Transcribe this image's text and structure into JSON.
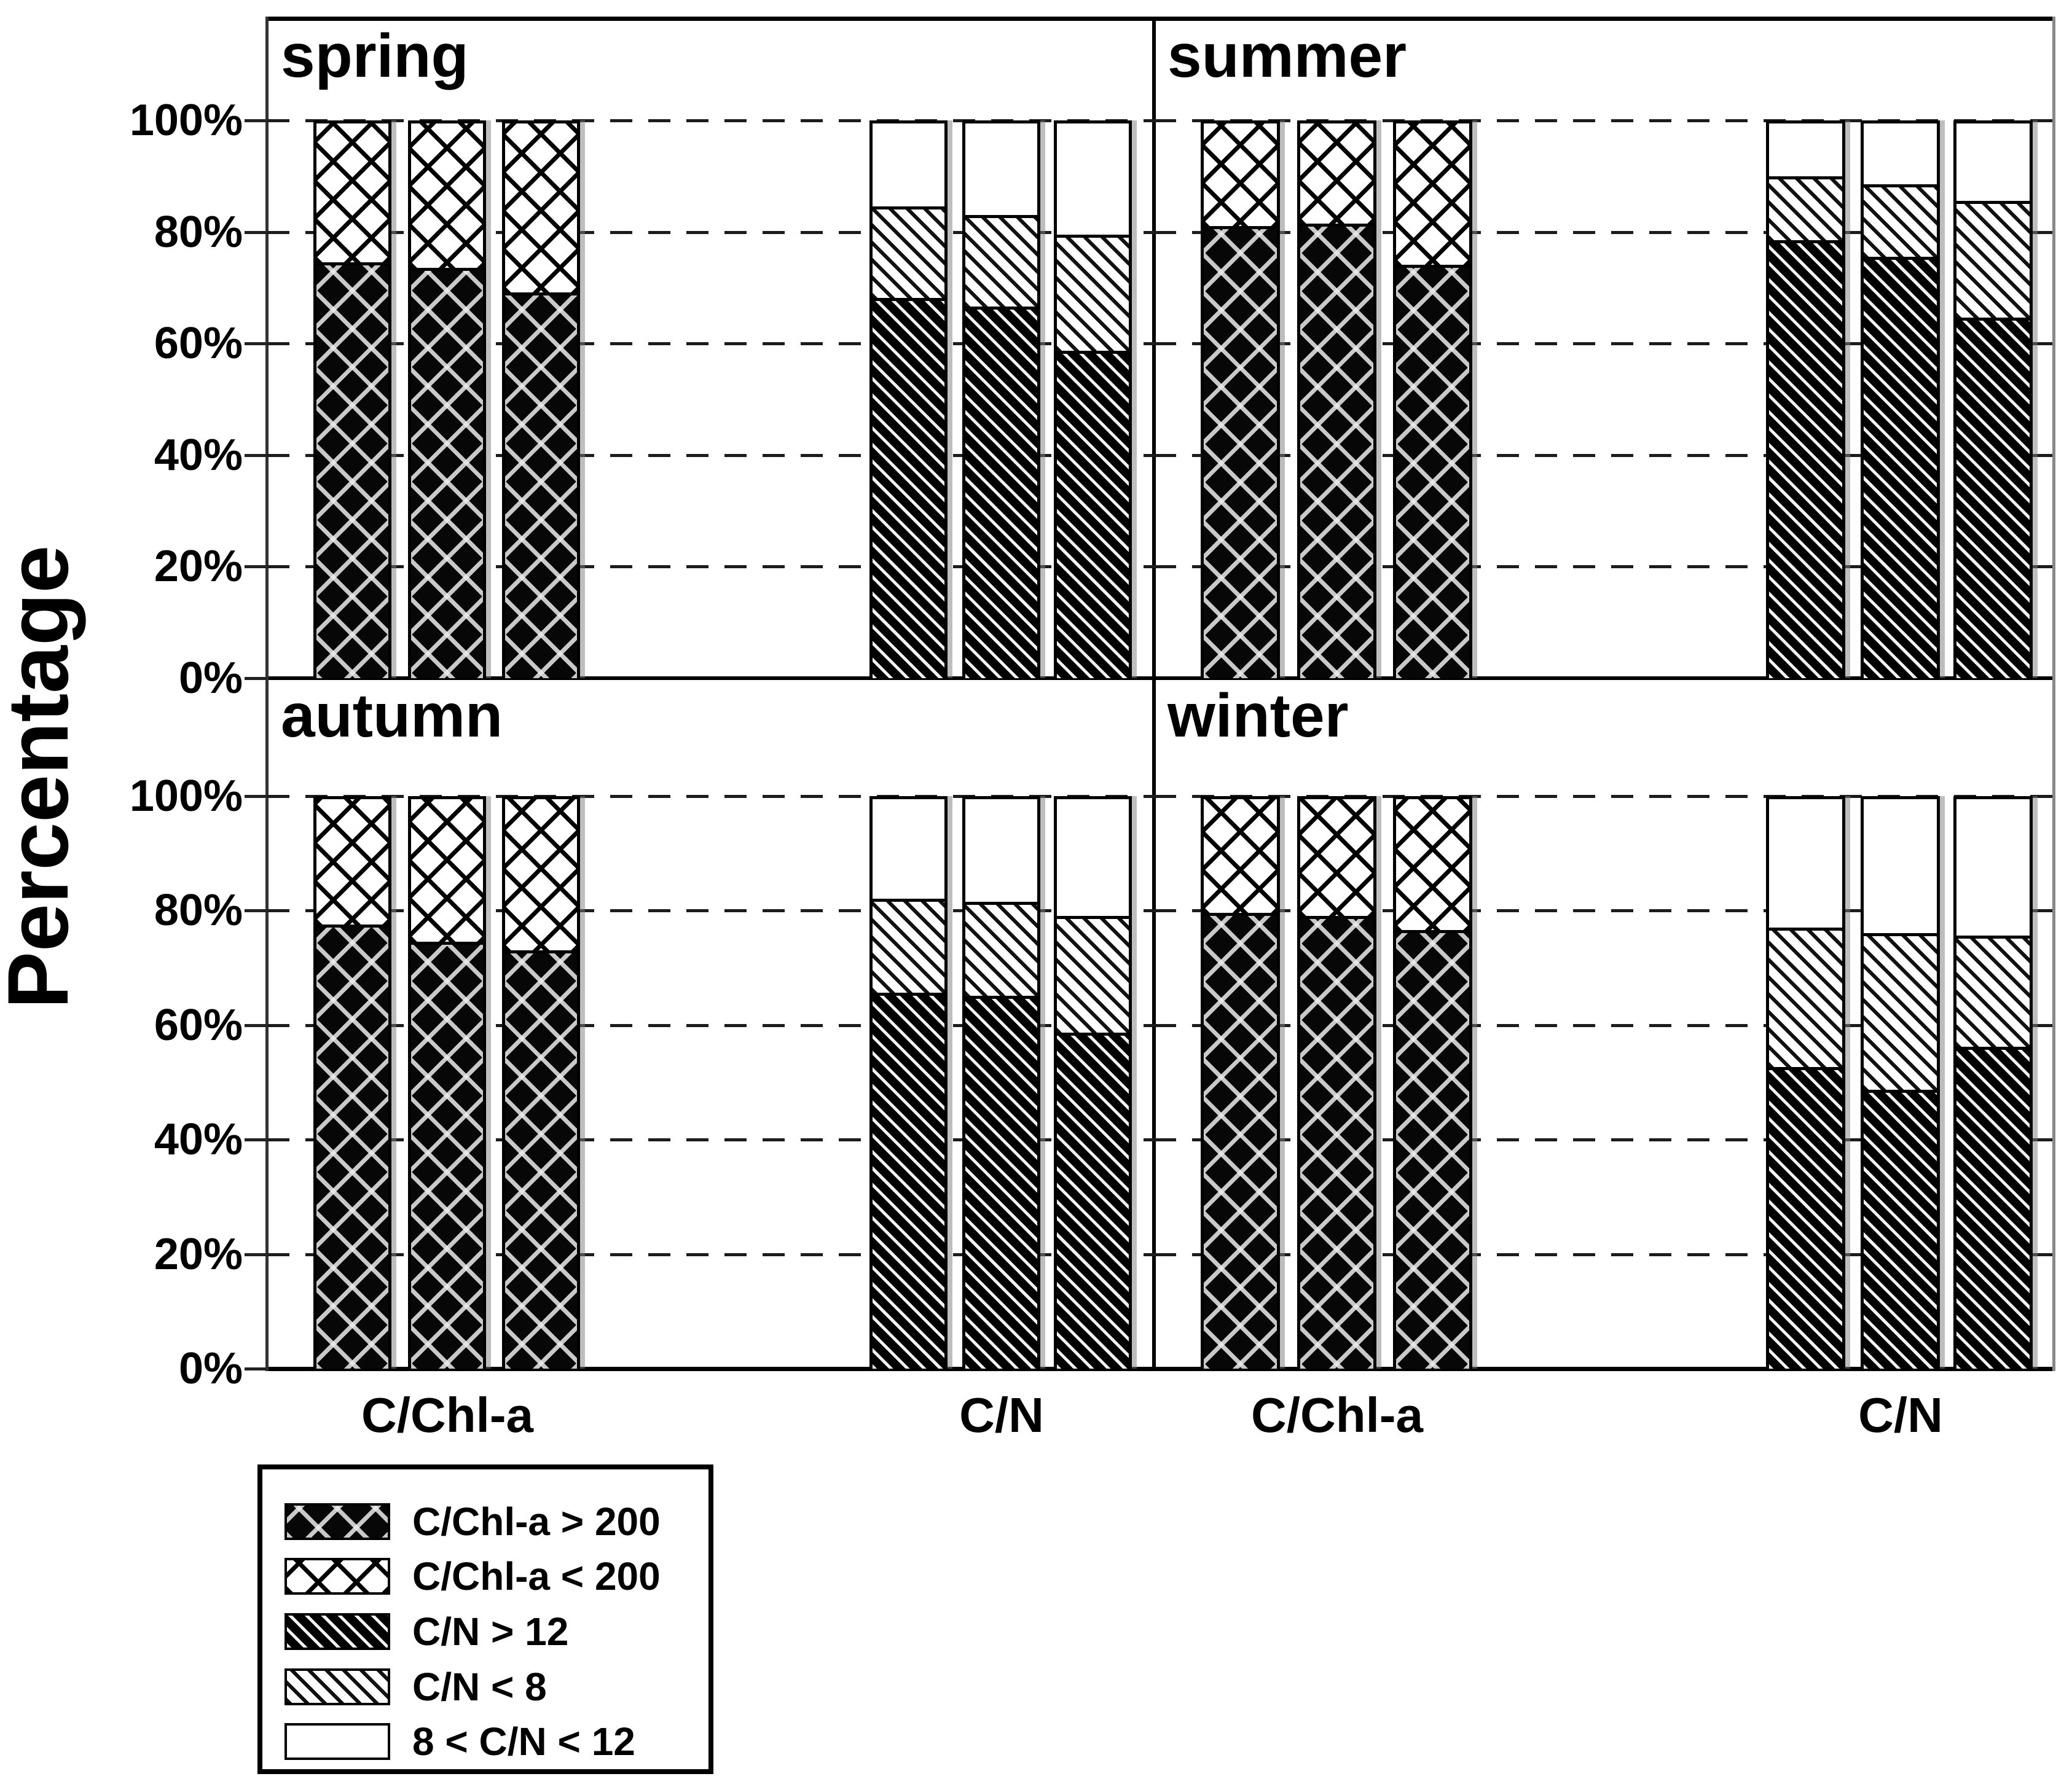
{
  "y_axis_title": "Percentage",
  "y_ticks": [
    "100%",
    "80%",
    "60%",
    "40%",
    "20%",
    "0%"
  ],
  "x_group_labels": [
    "C/Chl-a",
    "C/N",
    "C/Chl-a",
    "C/N"
  ],
  "legend": [
    {
      "pattern": "cchl-dark",
      "label": "C/Chl-a > 200"
    },
    {
      "pattern": "cchl-light",
      "label": "C/Chl-a < 200"
    },
    {
      "pattern": "cn-dark",
      "label": "C/N > 12"
    },
    {
      "pattern": "cn-light",
      "label": "C/N < 8"
    },
    {
      "pattern": "white",
      "label": "8 < C/N < 12"
    }
  ],
  "chart_data": {
    "type": "bar",
    "stacked": true,
    "unit": "percent",
    "ylim": [
      0,
      100
    ],
    "grid": "dashed horizontal at 20/40/60/80/100",
    "legend_position": "bottom-left",
    "panels": [
      {
        "season": "spring",
        "groups": [
          {
            "label": "C/Chl-a",
            "series_order": [
              "C/Chl-a > 200",
              "C/Chl-a < 200"
            ],
            "patterns": [
              "cchl-dark",
              "cchl-light"
            ],
            "bars": [
              [
                75,
                25
              ],
              [
                74,
                26
              ],
              [
                69.5,
                30.5
              ]
            ]
          },
          {
            "label": "C/N",
            "series_order": [
              "C/N > 12",
              "C/N < 8",
              "8 < C/N < 12"
            ],
            "patterns": [
              "cn-dark",
              "cn-light",
              "white"
            ],
            "bars": [
              [
                68.5,
                16.5,
                15
              ],
              [
                67,
                16.5,
                16.5
              ],
              [
                59,
                21,
                20
              ]
            ]
          }
        ]
      },
      {
        "season": "summer",
        "groups": [
          {
            "label": "C/Chl-a",
            "series_order": [
              "C/Chl-a > 200",
              "C/Chl-a < 200"
            ],
            "patterns": [
              "cchl-dark",
              "cchl-light"
            ],
            "bars": [
              [
                81.5,
                18.5
              ],
              [
                82,
                18
              ],
              [
                74.5,
                25.5
              ]
            ]
          },
          {
            "label": "C/N",
            "series_order": [
              "C/N > 12",
              "C/N < 8",
              "8 < C/N < 12"
            ],
            "patterns": [
              "cn-dark",
              "cn-light",
              "white"
            ],
            "bars": [
              [
                79,
                11.5,
                9.5
              ],
              [
                76,
                13,
                11
              ],
              [
                65,
                21,
                14
              ]
            ]
          }
        ]
      },
      {
        "season": "autumn",
        "groups": [
          {
            "label": "C/Chl-a",
            "series_order": [
              "C/Chl-a > 200",
              "C/Chl-a < 200"
            ],
            "patterns": [
              "cchl-dark",
              "cchl-light"
            ],
            "bars": [
              [
                78,
                22
              ],
              [
                75,
                25
              ],
              [
                73.5,
                26.5
              ]
            ]
          },
          {
            "label": "C/N",
            "series_order": [
              "C/N > 12",
              "C/N < 8",
              "8 < C/N < 12"
            ],
            "patterns": [
              "cn-dark",
              "cn-light",
              "white"
            ],
            "bars": [
              [
                66,
                16.5,
                17.5
              ],
              [
                65.5,
                16.5,
                18
              ],
              [
                59,
                20.5,
                20.5
              ]
            ]
          }
        ]
      },
      {
        "season": "winter",
        "groups": [
          {
            "label": "C/Chl-a",
            "series_order": [
              "C/Chl-a > 200",
              "C/Chl-a < 200"
            ],
            "patterns": [
              "cchl-dark",
              "cchl-light"
            ],
            "bars": [
              [
                80,
                20
              ],
              [
                79.5,
                20.5
              ],
              [
                77,
                23
              ]
            ]
          },
          {
            "label": "C/N",
            "series_order": [
              "C/N > 12",
              "C/N < 8",
              "8 < C/N < 12"
            ],
            "patterns": [
              "cn-dark",
              "cn-light",
              "white"
            ],
            "bars": [
              [
                53,
                24.5,
                22.5
              ],
              [
                49,
                27.5,
                23.5
              ],
              [
                56.5,
                19.5,
                24
              ]
            ]
          }
        ]
      }
    ]
  }
}
